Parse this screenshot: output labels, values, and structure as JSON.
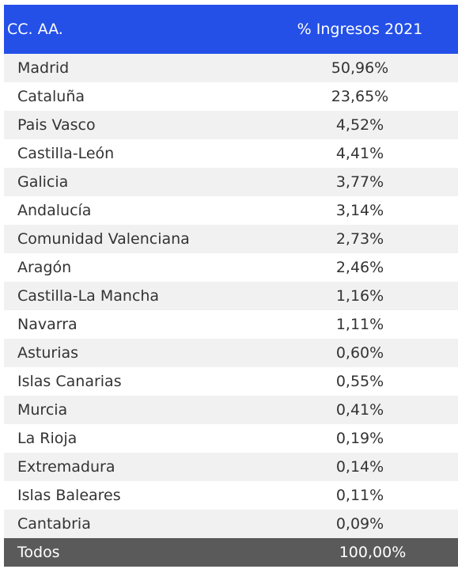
{
  "header": {
    "region": "CC. AA.",
    "percent": "% Ingresos 2021"
  },
  "rows": [
    {
      "region": "Madrid",
      "percent": "50,96%"
    },
    {
      "region": "Cataluña",
      "percent": "23,65%"
    },
    {
      "region": "Pais Vasco",
      "percent": "4,52%"
    },
    {
      "region": "Castilla-León",
      "percent": "4,41%"
    },
    {
      "region": "Galicia",
      "percent": "3,77%"
    },
    {
      "region": "Andalucía",
      "percent": "3,14%"
    },
    {
      "region": "Comunidad Valenciana",
      "percent": "2,73%"
    },
    {
      "region": "Aragón",
      "percent": "2,46%"
    },
    {
      "region": "Castilla-La Mancha",
      "percent": "1,16%"
    },
    {
      "region": "Navarra",
      "percent": "1,11%"
    },
    {
      "region": "Asturias",
      "percent": "0,60%"
    },
    {
      "region": "Islas Canarias",
      "percent": "0,55%"
    },
    {
      "region": "Murcia",
      "percent": "0,41%"
    },
    {
      "region": "La Rioja",
      "percent": "0,19%"
    },
    {
      "region": "Extremadura",
      "percent": "0,14%"
    },
    {
      "region": "Islas Baleares",
      "percent": "0,11%"
    },
    {
      "region": "Cantabria",
      "percent": "0,09%"
    }
  ],
  "footer": {
    "region": "Todos",
    "percent": "100,00%"
  },
  "colors": {
    "header_bg": "#2450e8",
    "footer_bg": "#5a5a5a",
    "row_alt_bg": "#f1f1f1"
  }
}
